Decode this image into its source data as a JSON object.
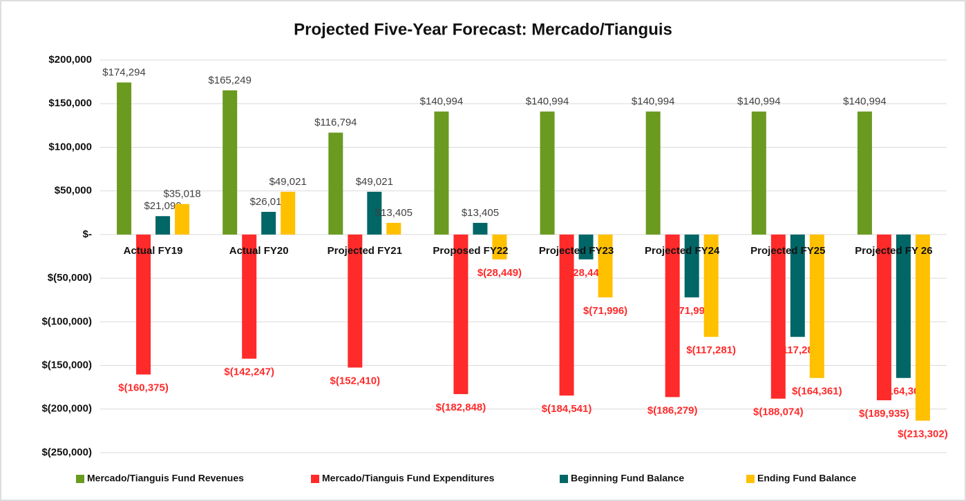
{
  "chart_data": {
    "type": "bar",
    "title": "Projected Five-Year Forecast: Mercado/Tianguis",
    "categories": [
      "Actual FY19",
      "Actual FY20",
      "Projected FY21",
      "Proposed FY22",
      "Projected FY23",
      "Projected FY24",
      "Projected FY25",
      "Projected FY 26"
    ],
    "series": [
      {
        "name": "Mercado/Tianguis Fund Revenues",
        "color": "#6a9a1f",
        "values": [
          174294,
          165249,
          116794,
          140994,
          140994,
          140994,
          140994,
          140994
        ],
        "value_labels": [
          "$174,294",
          "$165,249",
          "$116,794",
          "$140,994",
          "$140,994",
          "$140,994",
          "$140,994",
          "$140,994"
        ]
      },
      {
        "name": "Mercado/Tianguis Fund Expenditures",
        "color": "#ff2a2a",
        "values": [
          -160375,
          -142247,
          -152410,
          -182848,
          -184541,
          -186279,
          -188074,
          -189935
        ],
        "value_labels": [
          "$(160,375)",
          "$(142,247)",
          "$(152,410)",
          "$(182,848)",
          "$(184,541)",
          "$(186,279)",
          "$(188,074)",
          "$(189,935)"
        ]
      },
      {
        "name": "Beginning Fund Balance",
        "color": "#006666",
        "values": [
          21099,
          26019,
          49021,
          13405,
          -28449,
          -71996,
          -117281,
          -164361
        ],
        "value_labels": [
          "$21,099",
          "$26,019",
          "$49,021",
          "$13,405",
          "$(28,449)",
          "$(71,996)",
          "$(117,281)",
          "$(164,361)"
        ]
      },
      {
        "name": "Ending Fund Balance",
        "color": "#ffc000",
        "values": [
          35018,
          49021,
          13405,
          -28449,
          -71996,
          -117281,
          -164361,
          -213302
        ],
        "value_labels": [
          "$35,018",
          "$49,021",
          "$13,405",
          "$(28,449)",
          "$(71,996)",
          "$(117,281)",
          "$(164,361)",
          "$(213,302)"
        ]
      }
    ],
    "ylim": [
      -250000,
      200000
    ],
    "yticks": [
      {
        "value": 200000,
        "label": "$200,000"
      },
      {
        "value": 150000,
        "label": "$150,000"
      },
      {
        "value": 100000,
        "label": "$100,000"
      },
      {
        "value": 50000,
        "label": "$50,000"
      },
      {
        "value": 0,
        "label": "$-"
      },
      {
        "value": -50000,
        "label": "$(50,000)"
      },
      {
        "value": -100000,
        "label": "$(100,000)"
      },
      {
        "value": -150000,
        "label": "$(150,000)"
      },
      {
        "value": -200000,
        "label": "$(200,000)"
      },
      {
        "value": -250000,
        "label": "$(250,000)"
      }
    ],
    "grid": true,
    "legend": "bottom"
  }
}
